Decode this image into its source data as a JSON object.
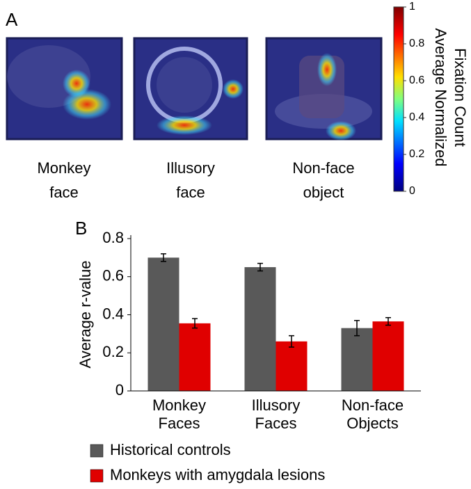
{
  "panel_a": {
    "label": "A",
    "images": [
      {
        "caption": "Monkey face"
      },
      {
        "caption": "Illusory face"
      },
      {
        "caption": "Non-face object"
      }
    ],
    "colorbar": {
      "title": [
        "Average Normalized",
        "Fixation Count"
      ],
      "lim": [
        0,
        1
      ],
      "ticks": [
        0,
        0.2,
        0.4,
        0.6,
        0.8,
        1
      ]
    }
  },
  "chart_data": {
    "type": "bar",
    "panel_label": "B",
    "y_label": "Average r-value",
    "categories": [
      "Monkey Faces",
      "Illusory Faces",
      "Non-face Objects"
    ],
    "series": [
      {
        "name": "Historical controls",
        "color": "#595959",
        "values": [
          0.7,
          0.65,
          0.33
        ],
        "errors": [
          0.02,
          0.02,
          0.04
        ]
      },
      {
        "name": "Monkeys with amygdala lesions",
        "color": "#e00000",
        "values": [
          0.355,
          0.26,
          0.365
        ],
        "errors": [
          0.025,
          0.03,
          0.02
        ]
      }
    ],
    "ylim": [
      0,
      0.8
    ],
    "yticks": [
      0,
      0.2,
      0.4,
      0.6,
      0.8
    ]
  }
}
